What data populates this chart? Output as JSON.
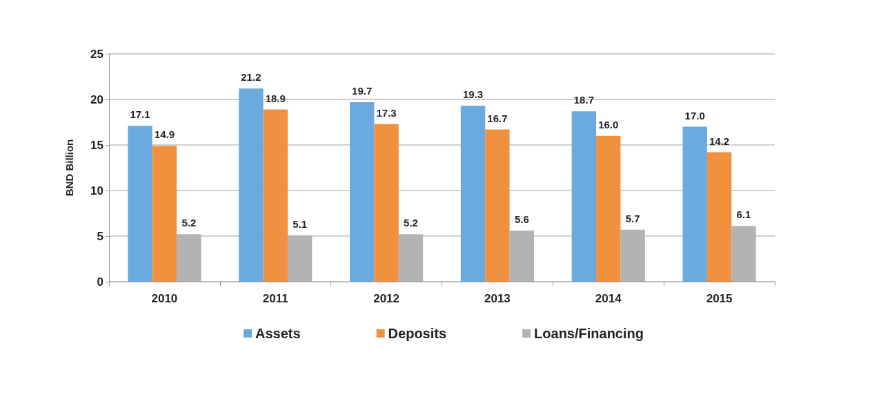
{
  "chart_data": {
    "type": "bar",
    "ylabel": "BND Billion",
    "categories": [
      "2010",
      "2011",
      "2012",
      "2013",
      "2014",
      "2015"
    ],
    "series": [
      {
        "name": "Assets",
        "color": "#6aaade",
        "values": [
          17.1,
          21.2,
          19.7,
          19.3,
          18.7,
          17.0
        ],
        "value_labels": [
          "17.1",
          "21.2",
          "19.7",
          "19.3",
          "18.7",
          "17.0"
        ]
      },
      {
        "name": "Deposits",
        "color": "#f0913f",
        "values": [
          14.9,
          18.9,
          17.3,
          16.7,
          16.0,
          14.2
        ],
        "value_labels": [
          "14.9",
          "18.9",
          "17.3",
          "16.7",
          "16.0",
          "14.2"
        ]
      },
      {
        "name": "Loans/Financing",
        "color": "#b3b3b3",
        "values": [
          5.2,
          5.1,
          5.2,
          5.6,
          5.7,
          6.1
        ],
        "value_labels": [
          "5.2",
          "5.1",
          "5.2",
          "5.6",
          "5.7",
          "6.1"
        ]
      }
    ],
    "ylim": [
      0,
      25
    ],
    "yticks": [
      0,
      5,
      10,
      15,
      20,
      25
    ],
    "grid": "y",
    "legend": "bottom"
  }
}
